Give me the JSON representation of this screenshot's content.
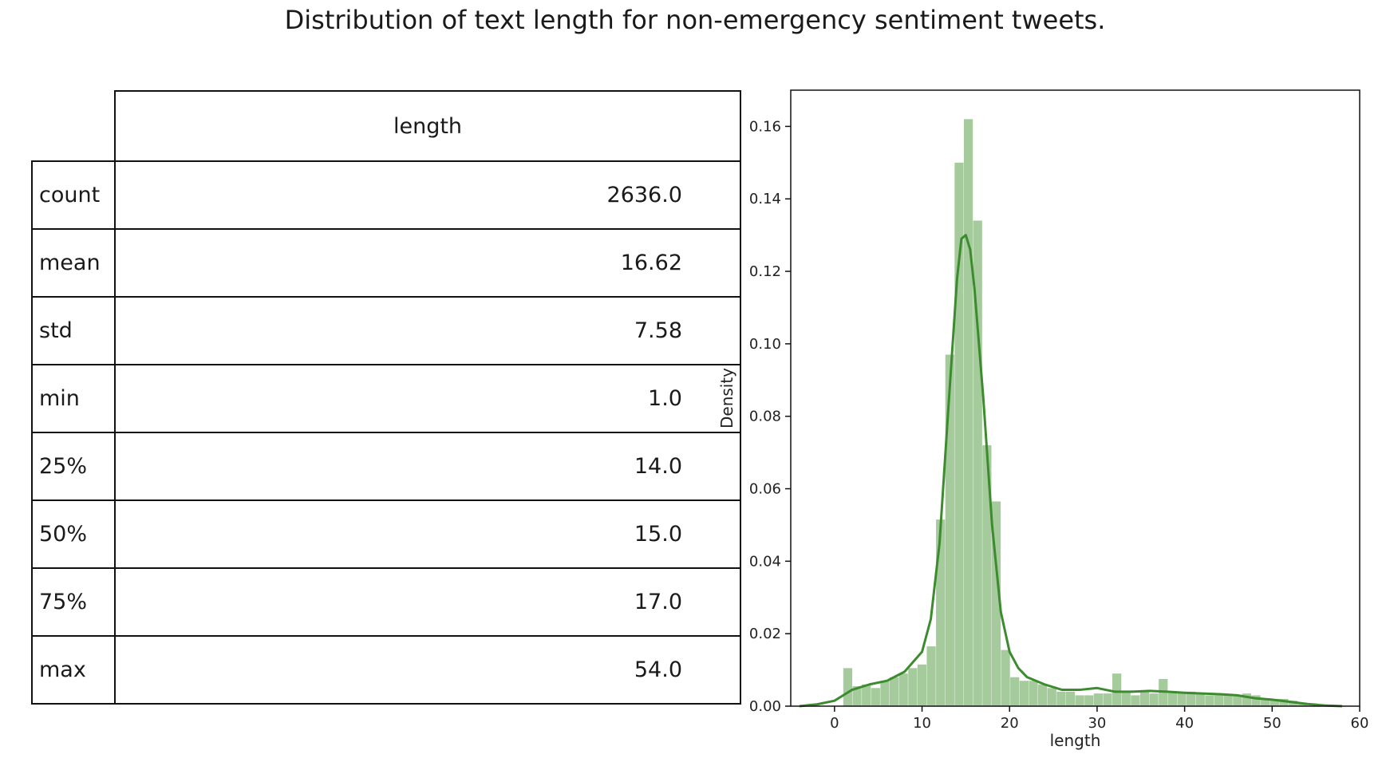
{
  "title": "Distribution of text length for non-emergency sentiment tweets.",
  "table": {
    "column_header": "length",
    "rows": [
      {
        "label": "count",
        "value": "2636.0"
      },
      {
        "label": "mean",
        "value": "16.62"
      },
      {
        "label": "std",
        "value": "7.58"
      },
      {
        "label": "min",
        "value": "1.0"
      },
      {
        "label": "25%",
        "value": "14.0"
      },
      {
        "label": "50%",
        "value": "15.0"
      },
      {
        "label": "75%",
        "value": "17.0"
      },
      {
        "label": "max",
        "value": "54.0"
      }
    ]
  },
  "chart_data": {
    "type": "bar",
    "xlabel": "length",
    "ylabel": "Density",
    "xlim": [
      -5,
      60
    ],
    "ylim": [
      0,
      0.17
    ],
    "xticks": [
      "0",
      "10",
      "20",
      "30",
      "40",
      "50",
      "60"
    ],
    "yticks": [
      "0.00",
      "0.02",
      "0.04",
      "0.06",
      "0.08",
      "0.10",
      "0.12",
      "0.14",
      "0.16"
    ],
    "grid": false,
    "colors": {
      "bars": "#a5cb9c",
      "kde": "#3d8b2f"
    },
    "histogram": {
      "bin_starts": [
        1.0,
        2.06,
        3.12,
        4.18,
        5.24,
        6.3,
        7.36,
        8.42,
        9.48,
        10.54,
        11.6,
        12.66,
        13.72,
        14.78,
        15.84,
        16.9,
        17.96,
        19.02,
        20.08,
        21.14,
        22.2,
        23.26,
        24.32,
        25.38,
        26.44,
        27.5,
        28.56,
        29.62,
        30.68,
        31.74,
        32.8,
        33.86,
        34.92,
        35.98,
        37.04,
        38.1,
        39.16,
        40.22,
        41.28,
        42.34,
        43.4,
        44.46,
        45.52,
        46.58,
        47.64,
        48.7,
        49.76,
        50.82,
        51.88,
        52.94
      ],
      "bin_width": 1.06,
      "density": [
        0.0105,
        0.0055,
        0.006,
        0.005,
        0.007,
        0.008,
        0.009,
        0.0105,
        0.0115,
        0.0165,
        0.0515,
        0.097,
        0.15,
        0.162,
        0.134,
        0.072,
        0.0565,
        0.0155,
        0.008,
        0.007,
        0.007,
        0.006,
        0.005,
        0.004,
        0.004,
        0.003,
        0.003,
        0.0035,
        0.0035,
        0.009,
        0.004,
        0.003,
        0.004,
        0.0035,
        0.0075,
        0.004,
        0.004,
        0.004,
        0.0035,
        0.003,
        0.003,
        0.003,
        0.003,
        0.0035,
        0.003,
        0.002,
        0.002,
        0.002,
        0.0015,
        0.001
      ]
    },
    "kde": {
      "x": [
        -4,
        -2,
        0,
        1,
        2,
        4,
        6,
        8,
        10,
        11,
        12,
        13,
        14,
        14.5,
        15,
        15.5,
        16,
        17,
        18,
        19,
        20,
        21,
        22,
        24,
        26,
        28,
        30,
        32,
        34,
        36,
        38,
        40,
        42,
        44,
        46,
        48,
        50,
        52,
        54,
        56,
        58
      ],
      "y": [
        0.0,
        0.0005,
        0.0015,
        0.003,
        0.0045,
        0.006,
        0.007,
        0.0095,
        0.015,
        0.024,
        0.045,
        0.082,
        0.118,
        0.129,
        0.13,
        0.126,
        0.115,
        0.085,
        0.05,
        0.026,
        0.015,
        0.0105,
        0.008,
        0.006,
        0.0045,
        0.0045,
        0.005,
        0.004,
        0.004,
        0.0042,
        0.004,
        0.0037,
        0.0035,
        0.0033,
        0.003,
        0.0022,
        0.0018,
        0.0012,
        0.0006,
        0.0002,
        0.0
      ]
    }
  }
}
